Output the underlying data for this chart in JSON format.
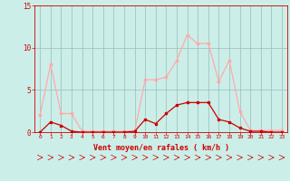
{
  "x": [
    0,
    1,
    2,
    3,
    4,
    5,
    6,
    7,
    8,
    9,
    10,
    11,
    12,
    13,
    14,
    15,
    16,
    17,
    18,
    19,
    20,
    21,
    22,
    23
  ],
  "y_rafales": [
    2.0,
    8.0,
    2.2,
    2.2,
    0.1,
    0.1,
    0.1,
    0.1,
    0.1,
    0.1,
    6.2,
    6.2,
    6.5,
    8.5,
    11.5,
    10.5,
    10.5,
    6.0,
    8.5,
    2.5,
    0.2,
    0.2,
    0.2,
    0.2
  ],
  "y_moyen": [
    0.0,
    1.2,
    0.8,
    0.1,
    0.0,
    0.0,
    0.0,
    0.0,
    0.0,
    0.1,
    1.5,
    1.0,
    2.2,
    3.2,
    3.5,
    3.5,
    3.5,
    1.5,
    1.2,
    0.5,
    0.1,
    0.1,
    0.0,
    0.0
  ],
  "color_rafales": "#ffaaaa",
  "color_moyen": "#cc0000",
  "bg_color": "#cceee8",
  "grid_color": "#99bbbb",
  "xlabel": "Vent moyen/en rafales ( km/h )",
  "xlabel_color": "#cc0000",
  "tick_color": "#cc0000",
  "ylim": [
    0,
    15
  ],
  "yticks": [
    0,
    5,
    10,
    15
  ],
  "xlim": [
    -0.5,
    23.5
  ]
}
